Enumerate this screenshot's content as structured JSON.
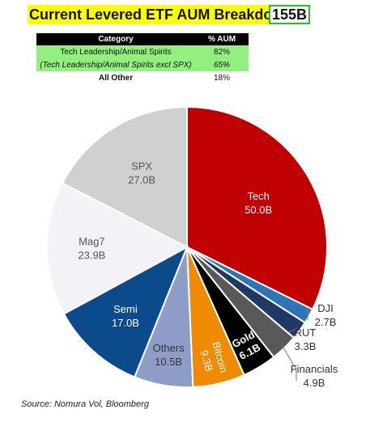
{
  "header": {
    "title": "Current Levered ETF AUM Breakdown:",
    "total": "155B"
  },
  "summary_table": {
    "columns": [
      "Category",
      "% AUM"
    ],
    "rows": [
      {
        "category": "Tech Leadership/Animal Spirits",
        "pct": "82%"
      },
      {
        "category": "(Tech Leadership/Animal Spirits excl SPX)",
        "pct": "65%"
      },
      {
        "category": "All Other",
        "pct": "18%"
      }
    ]
  },
  "chart_data": {
    "type": "pie",
    "unit": "B",
    "start_angle_deg": 0,
    "direction": "clockwise",
    "slices": [
      {
        "label": "Tech",
        "value": 50.0,
        "value_text": "50.0B",
        "color": "#c00000"
      },
      {
        "label": "DJI",
        "value": 2.7,
        "value_text": "2.7B",
        "color": "#2e75b6"
      },
      {
        "label": "RUT",
        "value": 3.3,
        "value_text": "3.3B",
        "color": "#1f3864"
      },
      {
        "label": "Financials",
        "value": 4.9,
        "value_text": "4.9B",
        "color": "#595959"
      },
      {
        "label": "Gold",
        "value": 6.1,
        "value_text": "6.1B",
        "color": "#000000"
      },
      {
        "label": "Bitcoin",
        "value": 9.3,
        "value_text": "9.3B",
        "color": "#f08a00"
      },
      {
        "label": "Others",
        "value": 10.5,
        "value_text": "10.5B",
        "color": "#8e9dc7"
      },
      {
        "label": "Semi",
        "value": 17.0,
        "value_text": "17.0B",
        "color": "#0b4a8b"
      },
      {
        "label": "Mag7",
        "value": 23.9,
        "value_text": "23.9B",
        "color": "#f2f2f7"
      },
      {
        "label": "SPX",
        "value": 27.0,
        "value_text": "27.0B",
        "color": "#d0d0d0"
      }
    ],
    "total": 154.7
  },
  "source": "Source: Nomura Vol, Bloomberg"
}
